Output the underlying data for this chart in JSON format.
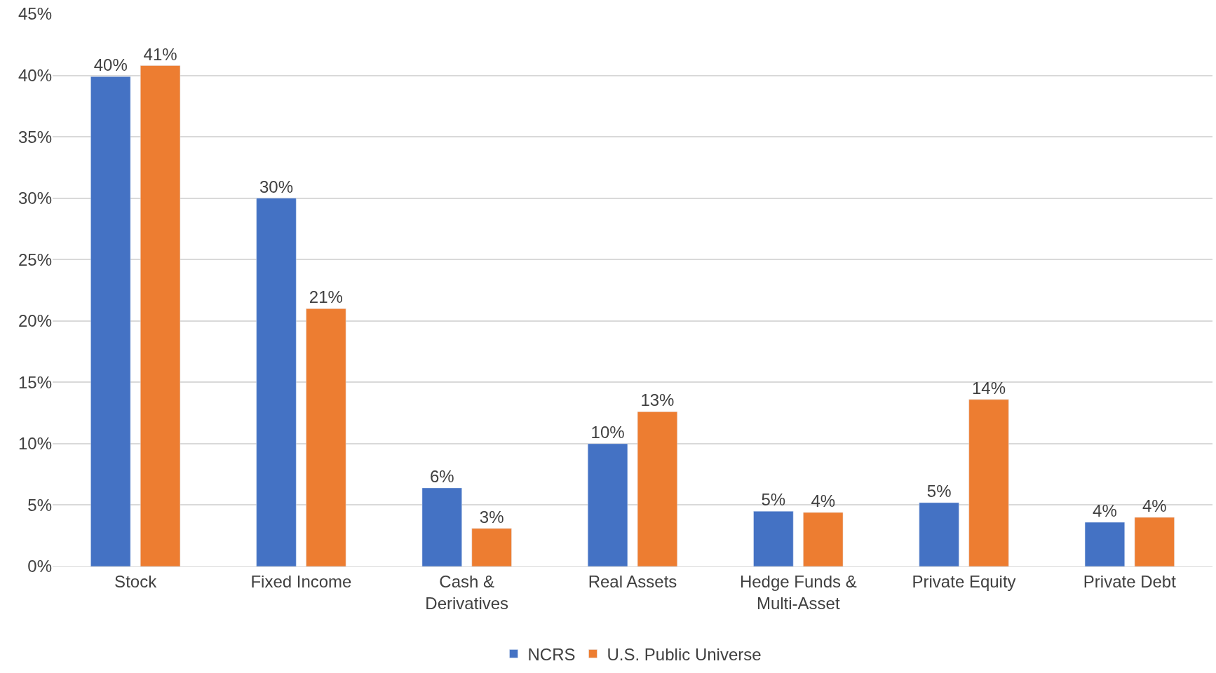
{
  "chart_data": {
    "type": "bar",
    "categories": [
      "Stock",
      "Fixed Income",
      "Cash & Derivatives",
      "Real Assets",
      "Hedge Funds & Multi-Asset",
      "Private Equity",
      "Private Debt"
    ],
    "series": [
      {
        "name": "NCRS",
        "color": "#4472c4",
        "values": [
          39.9,
          30.0,
          6.4,
          10.0,
          4.5,
          5.2,
          3.6
        ],
        "value_labels": [
          "40%",
          "30%",
          "6%",
          "10%",
          "5%",
          "5%",
          "4%"
        ]
      },
      {
        "name": "U.S. Public Universe",
        "color": "#ed7d31",
        "values": [
          40.8,
          21.0,
          3.1,
          12.6,
          4.4,
          13.6,
          4.0
        ],
        "value_labels": [
          "41%",
          "21%",
          "3%",
          "13%",
          "4%",
          "14%",
          "4%"
        ]
      }
    ],
    "ylim": [
      0,
      45
    ],
    "yticks": [
      {
        "value": 0,
        "label": "0%"
      },
      {
        "value": 5,
        "label": "5%"
      },
      {
        "value": 10,
        "label": "10%"
      },
      {
        "value": 15,
        "label": "15%"
      },
      {
        "value": 20,
        "label": "20%"
      },
      {
        "value": 25,
        "label": "25%"
      },
      {
        "value": 30,
        "label": "30%"
      },
      {
        "value": 35,
        "label": "35%"
      },
      {
        "value": 40,
        "label": "40%"
      },
      {
        "value": 45,
        "label": "45%"
      }
    ],
    "grid": "y",
    "legend": "bottom"
  }
}
